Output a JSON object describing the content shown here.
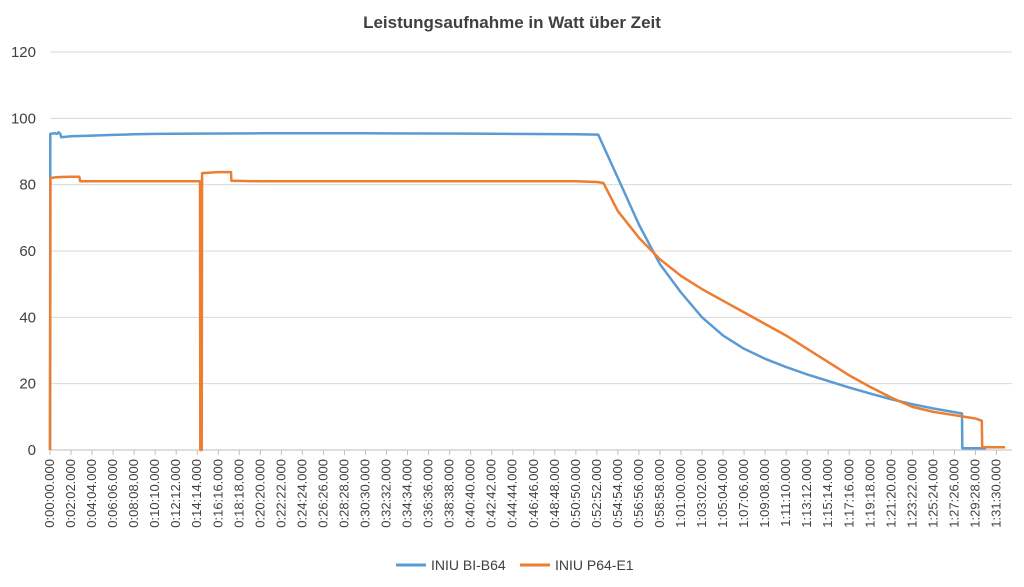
{
  "chart_data": {
    "type": "line",
    "title": "Leistungsaufnahme in Watt über Zeit",
    "xlabel": "",
    "ylabel": "",
    "ylim": [
      0,
      120
    ],
    "yticks": [
      0,
      20,
      40,
      60,
      80,
      100,
      120
    ],
    "xlim": [
      "0:00:00.000",
      "1:33:00.000"
    ],
    "xtick_labels": [
      "0:00:00.000",
      "0:02:02.000",
      "0:04:04.000",
      "0:06:06.000",
      "0:08:08.000",
      "0:10:10.000",
      "0:12:12.000",
      "0:14:14.000",
      "0:16:16.000",
      "0:18:18.000",
      "0:20:20.000",
      "0:22:22.000",
      "0:24:24.000",
      "0:26:26.000",
      "0:28:28.000",
      "0:30:30.000",
      "0:32:32.000",
      "0:34:34.000",
      "0:36:36.000",
      "0:38:38.000",
      "0:40:40.000",
      "0:42:42.000",
      "0:44:44.000",
      "0:46:46.000",
      "0:48:48.000",
      "0:50:50.000",
      "0:52:52.000",
      "0:54:54.000",
      "0:56:56.000",
      "0:58:58.000",
      "1:01:00.000",
      "1:03:02.000",
      "1:05:04.000",
      "1:07:06.000",
      "1:09:08.000",
      "1:11:10.000",
      "1:13:12.000",
      "1:15:14.000",
      "1:17:16.000",
      "1:19:18.000",
      "1:21:20.000",
      "1:23:22.000",
      "1:25:24.000",
      "1:27:26.000",
      "1:29:28.000",
      "1:31:30.000"
    ],
    "grid": true,
    "legend_position": "bottom",
    "series": [
      {
        "name": "INIU BI-B64",
        "color": "#5B9BD5",
        "points": [
          [
            "0:00:00.000",
            0
          ],
          [
            "0:00:02.000",
            95.3
          ],
          [
            "0:00:30.000",
            95.5
          ],
          [
            "0:00:40.000",
            95.3
          ],
          [
            "0:00:50.000",
            95.8
          ],
          [
            "0:01:00.000",
            95.3
          ],
          [
            "0:01:05.000",
            94.3
          ],
          [
            "0:02:02.000",
            94.6
          ],
          [
            "0:04:04.000",
            94.8
          ],
          [
            "0:06:06.000",
            95.0
          ],
          [
            "0:08:08.000",
            95.2
          ],
          [
            "0:10:10.000",
            95.3
          ],
          [
            "0:14:14.000",
            95.4
          ],
          [
            "0:20:20.000",
            95.5
          ],
          [
            "0:30:30.000",
            95.5
          ],
          [
            "0:40:40.000",
            95.4
          ],
          [
            "0:50:50.000",
            95.2
          ],
          [
            "0:53:00.000",
            95.1
          ],
          [
            "0:54:54.000",
            82
          ],
          [
            "0:56:56.000",
            68
          ],
          [
            "0:58:58.000",
            56
          ],
          [
            "1:01:00.000",
            47.5
          ],
          [
            "1:03:02.000",
            40
          ],
          [
            "1:05:04.000",
            34.5
          ],
          [
            "1:07:06.000",
            30.5
          ],
          [
            "1:09:08.000",
            27.5
          ],
          [
            "1:11:10.000",
            25
          ],
          [
            "1:13:12.000",
            22.8
          ],
          [
            "1:15:14.000",
            20.8
          ],
          [
            "1:17:16.000",
            18.8
          ],
          [
            "1:19:18.000",
            17.0
          ],
          [
            "1:21:20.000",
            15.3
          ],
          [
            "1:23:22.000",
            13.8
          ],
          [
            "1:25:24.000",
            12.5
          ],
          [
            "1:28:10.000",
            11.0
          ],
          [
            "1:28:12.000",
            0.5
          ],
          [
            "1:30:30.000",
            0.5
          ]
        ]
      },
      {
        "name": "INIU P64-E1",
        "color": "#ED7D31",
        "points": [
          [
            "0:00:00.000",
            0
          ],
          [
            "0:00:03.000",
            82
          ],
          [
            "0:00:30.000",
            82.2
          ],
          [
            "0:01:00.000",
            82.3
          ],
          [
            "0:02:00.000",
            82.4
          ],
          [
            "0:02:50.000",
            82.4
          ],
          [
            "0:02:55.000",
            81.0
          ],
          [
            "0:04:04.000",
            81.0
          ],
          [
            "0:10:10.000",
            81.0
          ],
          [
            "0:14:30.000",
            81.0
          ],
          [
            "0:14:32.000",
            0
          ],
          [
            "0:14:40.000",
            0
          ],
          [
            "0:14:42.000",
            83.5
          ],
          [
            "0:16:16.000",
            83.8
          ],
          [
            "0:17:30.000",
            83.8
          ],
          [
            "0:17:32.000",
            81.2
          ],
          [
            "0:20:20.000",
            81.0
          ],
          [
            "0:30:30.000",
            81.0
          ],
          [
            "0:40:40.000",
            81.0
          ],
          [
            "0:50:50.000",
            81.0
          ],
          [
            "0:52:52.000",
            80.8
          ],
          [
            "0:53:30.000",
            80.5
          ],
          [
            "0:54:54.000",
            72
          ],
          [
            "0:56:56.000",
            64
          ],
          [
            "0:58:58.000",
            57.5
          ],
          [
            "1:01:00.000",
            52.5
          ],
          [
            "1:03:02.000",
            48.5
          ],
          [
            "1:05:04.000",
            45
          ],
          [
            "1:07:06.000",
            41.5
          ],
          [
            "1:09:08.000",
            38
          ],
          [
            "1:11:10.000",
            34.5
          ],
          [
            "1:13:12.000",
            30.5
          ],
          [
            "1:15:14.000",
            26.5
          ],
          [
            "1:17:16.000",
            22.5
          ],
          [
            "1:19:18.000",
            19
          ],
          [
            "1:21:20.000",
            15.8
          ],
          [
            "1:23:22.000",
            13.0
          ],
          [
            "1:25:24.000",
            11.5
          ],
          [
            "1:27:26.000",
            10.5
          ],
          [
            "1:29:28.000",
            9.5
          ],
          [
            "1:30:05.000",
            8.8
          ],
          [
            "1:30:07.000",
            0.8
          ],
          [
            "1:32:20.000",
            0.8
          ]
        ]
      }
    ]
  }
}
